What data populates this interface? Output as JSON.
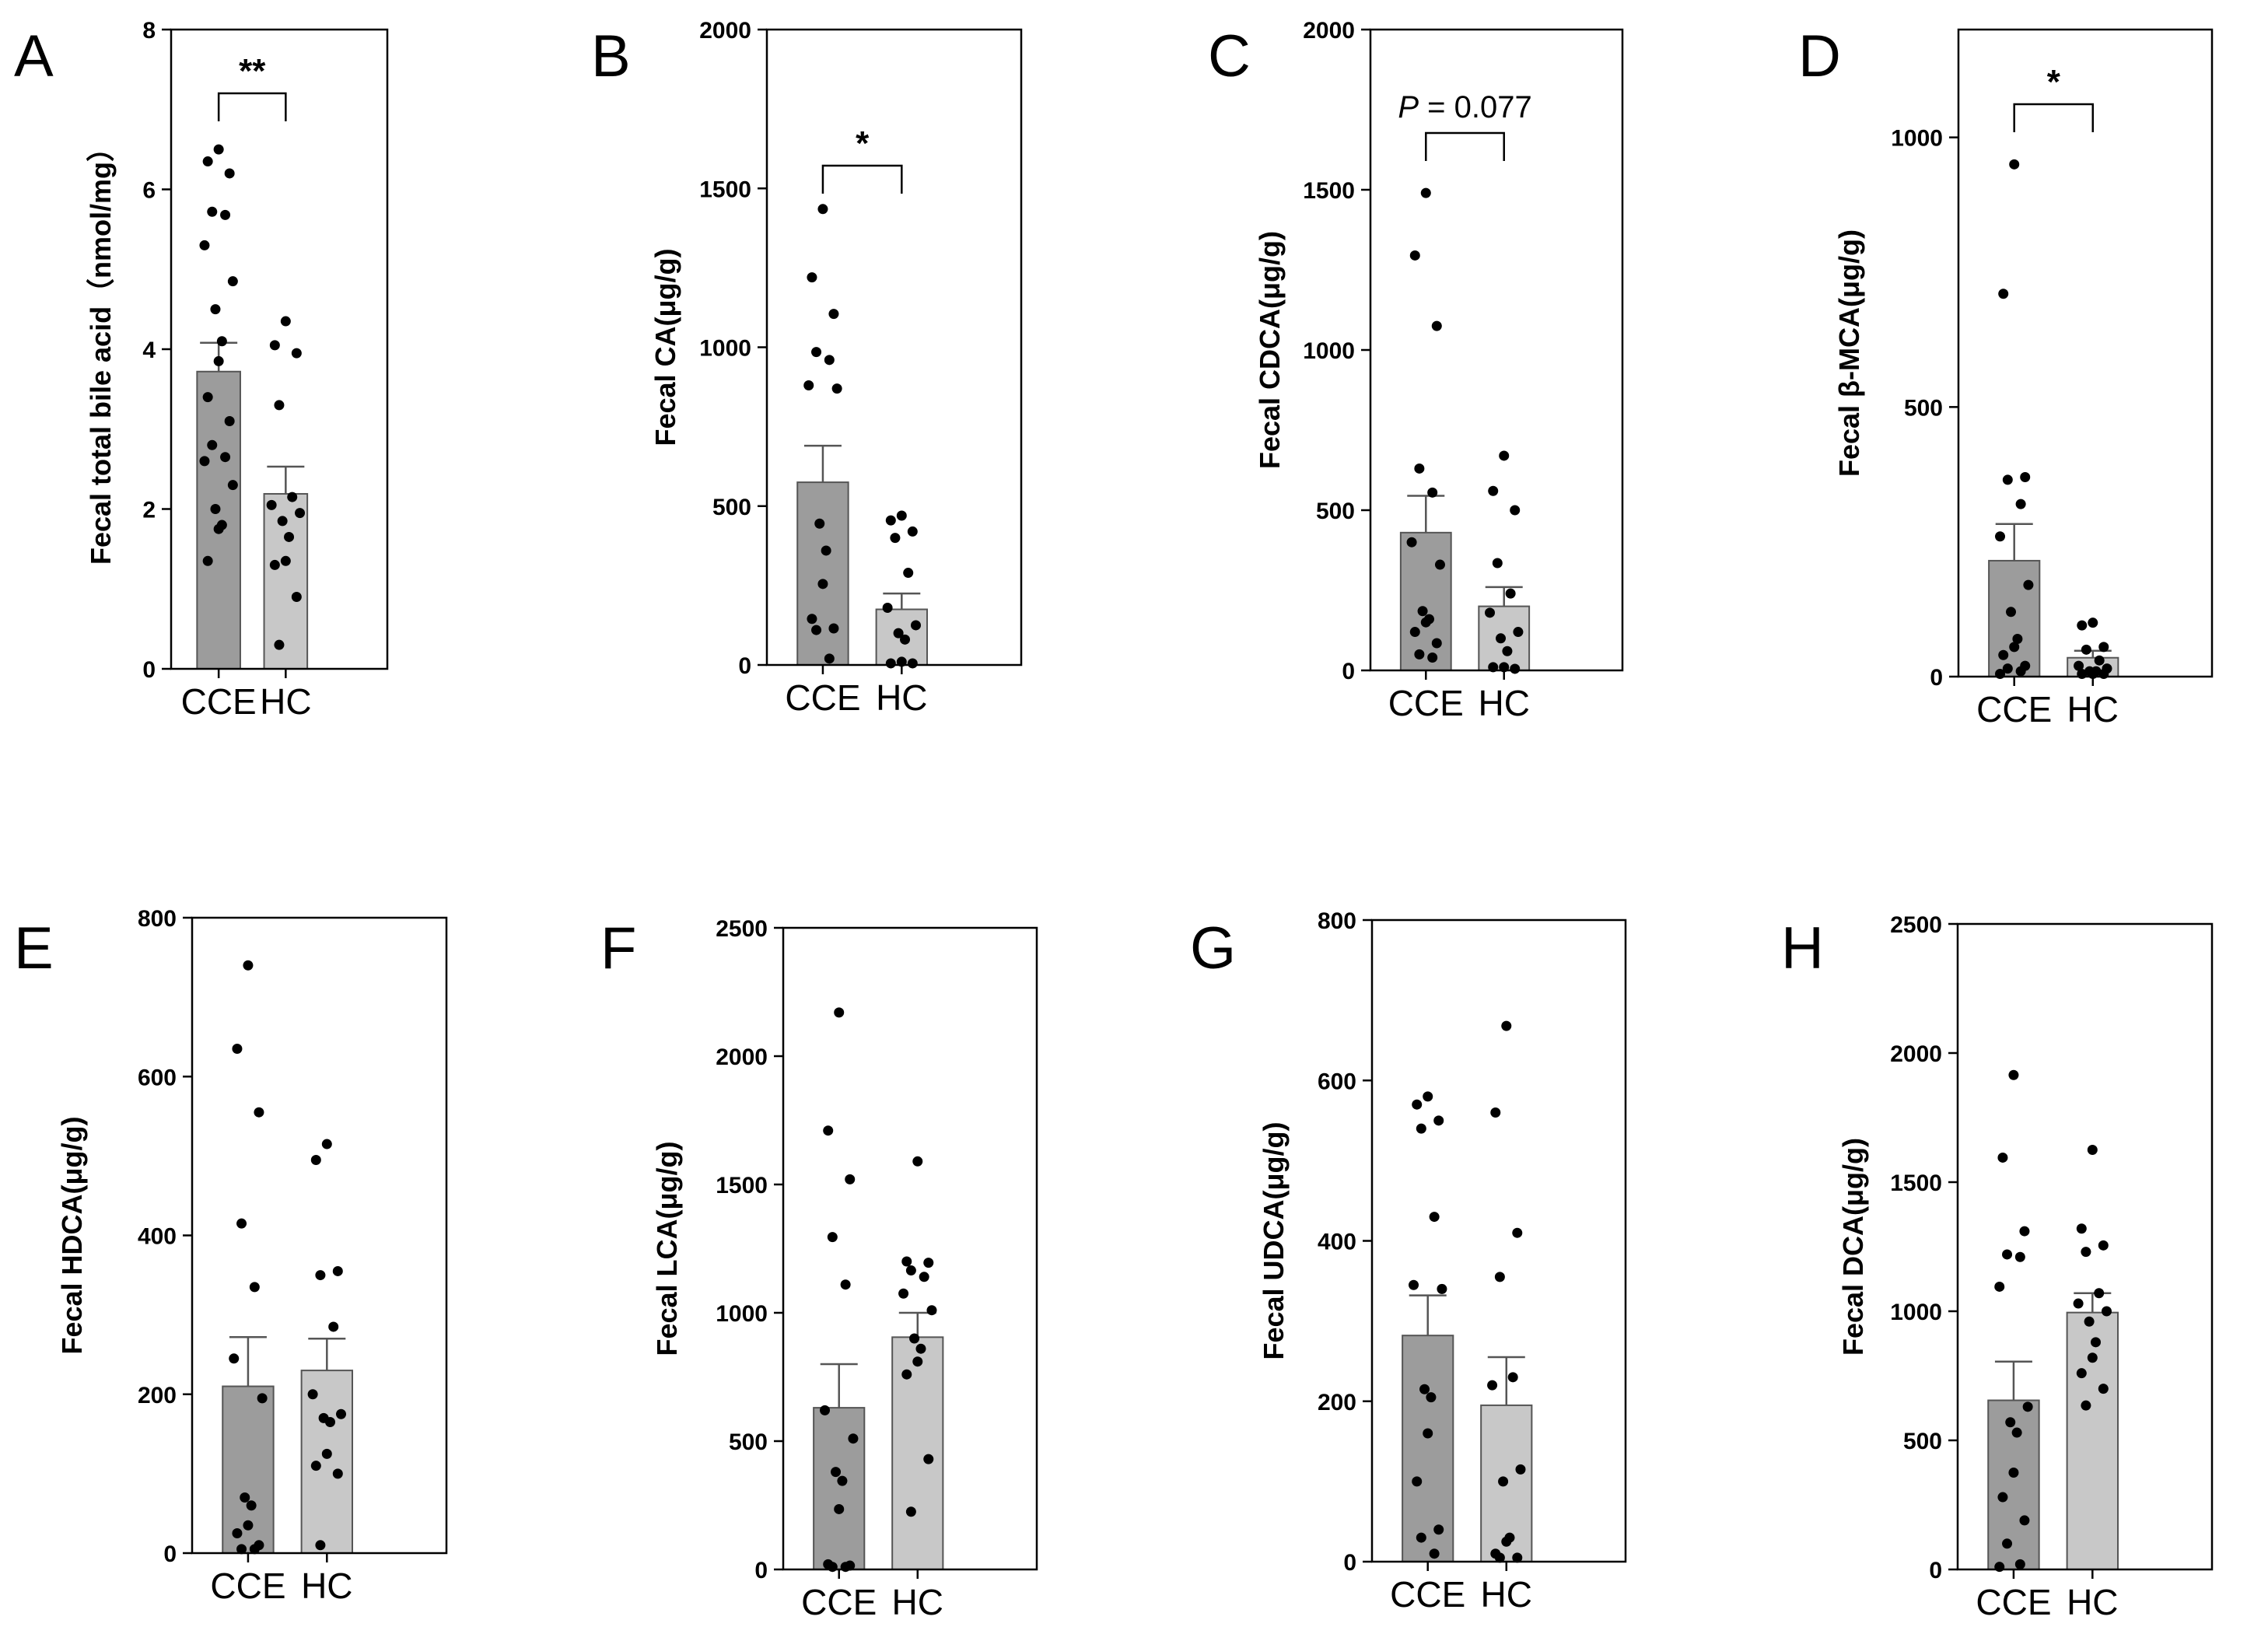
{
  "chart_data": [
    {
      "type": "bar",
      "panel": "A",
      "title": "",
      "xlabel": "",
      "ylabel": "Fecal total bile acid（nmol/mg）",
      "categories": [
        "CCE",
        "HC"
      ],
      "values": [
        3.72,
        2.19
      ],
      "sem": [
        0.36,
        0.34
      ],
      "ylim": [
        0,
        8
      ],
      "yticks": [
        0,
        2,
        4,
        6,
        8
      ],
      "points": [
        [
          6.5,
          6.35,
          6.2,
          5.72,
          5.68,
          5.3,
          4.85,
          4.5,
          4.1,
          3.85,
          3.4,
          3.1,
          2.8,
          2.65,
          2.6,
          2.3,
          2.0,
          1.8,
          1.75,
          1.35
        ],
        [
          4.35,
          4.05,
          3.95,
          3.3,
          2.15,
          2.05,
          1.95,
          1.85,
          1.65,
          1.35,
          1.3,
          0.9,
          0.3
        ]
      ],
      "significance": "**"
    },
    {
      "type": "bar",
      "panel": "B",
      "title": "",
      "xlabel": "",
      "ylabel": "Fecal CA(μg/g)",
      "categories": [
        "CCE",
        "HC"
      ],
      "values": [
        575,
        175
      ],
      "sem": [
        115,
        50
      ],
      "ylim": [
        0,
        2000
      ],
      "yticks": [
        0,
        500,
        1000,
        1500,
        2000
      ],
      "points": [
        [
          1435,
          1220,
          1105,
          985,
          960,
          880,
          870,
          445,
          360,
          255,
          145,
          115,
          110,
          20
        ],
        [
          470,
          455,
          420,
          400,
          290,
          180,
          125,
          100,
          80,
          10,
          5,
          5
        ]
      ],
      "significance": "*"
    },
    {
      "type": "bar",
      "panel": "C",
      "title": "",
      "xlabel": "",
      "ylabel": "Fecal CDCA(μg/g)",
      "categories": [
        "CCE",
        "HC"
      ],
      "values": [
        430,
        200
      ],
      "sem": [
        115,
        60
      ],
      "ylim": [
        0,
        2000
      ],
      "yticks": [
        0,
        500,
        1000,
        1500,
        2000
      ],
      "points": [
        [
          1490,
          1295,
          1075,
          630,
          555,
          400,
          330,
          185,
          160,
          150,
          120,
          85,
          50,
          40
        ],
        [
          670,
          560,
          500,
          335,
          240,
          180,
          120,
          100,
          60,
          10,
          10,
          5
        ]
      ],
      "significance": "P = 0.077"
    },
    {
      "type": "bar",
      "panel": "D",
      "title": "",
      "xlabel": "",
      "ylabel": "Fecal β-MCA(μg/g)",
      "categories": [
        "CCE",
        "HC"
      ],
      "values": [
        215,
        35
      ],
      "sem": [
        68,
        13
      ],
      "ylim": [
        0,
        1200
      ],
      "yticks": [
        0,
        500,
        1000
      ],
      "points": [
        [
          950,
          710,
          370,
          365,
          320,
          260,
          170,
          120,
          70,
          55,
          40,
          20,
          15,
          10,
          5
        ],
        [
          100,
          95,
          55,
          50,
          30,
          20,
          15,
          10,
          10,
          5,
          5,
          5
        ]
      ],
      "significance": "*"
    },
    {
      "type": "bar",
      "panel": "E",
      "title": "",
      "xlabel": "",
      "ylabel": "Fecal HDCA(μg/g)",
      "categories": [
        "CCE",
        "HC"
      ],
      "values": [
        210,
        230
      ],
      "sem": [
        62,
        40
      ],
      "ylim": [
        0,
        800
      ],
      "yticks": [
        0,
        200,
        400,
        600,
        800
      ],
      "points": [
        [
          740,
          635,
          555,
          415,
          335,
          245,
          195,
          70,
          60,
          35,
          25,
          10,
          5,
          5
        ],
        [
          515,
          495,
          355,
          350,
          285,
          200,
          175,
          170,
          165,
          125,
          110,
          100,
          10
        ]
      ],
      "significance": ""
    },
    {
      "type": "bar",
      "panel": "F",
      "title": "",
      "xlabel": "",
      "ylabel": "Fecal LCA(μg/g)",
      "categories": [
        "CCE",
        "HC"
      ],
      "values": [
        630,
        905
      ],
      "sem": [
        170,
        95
      ],
      "ylim": [
        0,
        2500
      ],
      "yticks": [
        0,
        500,
        1000,
        1500,
        2000,
        2500
      ],
      "points": [
        [
          2170,
          1710,
          1520,
          1295,
          1110,
          620,
          510,
          380,
          345,
          235,
          20,
          15,
          10,
          10
        ],
        [
          1590,
          1200,
          1195,
          1165,
          1140,
          1075,
          1010,
          900,
          860,
          810,
          760,
          430,
          225
        ]
      ],
      "significance": ""
    },
    {
      "type": "bar",
      "panel": "G",
      "title": "",
      "xlabel": "",
      "ylabel": "Fecal UDCA(μg/g)",
      "categories": [
        "CCE",
        "HC"
      ],
      "values": [
        282,
        195
      ],
      "sem": [
        50,
        60
      ],
      "ylim": [
        0,
        800
      ],
      "yticks": [
        0,
        200,
        400,
        600,
        800
      ],
      "points": [
        [
          580,
          570,
          550,
          540,
          430,
          345,
          340,
          215,
          205,
          160,
          100,
          40,
          30,
          10
        ],
        [
          668,
          560,
          410,
          355,
          230,
          220,
          115,
          100,
          30,
          25,
          10,
          5,
          5
        ]
      ],
      "significance": ""
    },
    {
      "type": "bar",
      "panel": "H",
      "title": "",
      "xlabel": "",
      "ylabel": "Fecal DCA(μg/g)",
      "categories": [
        "CCE",
        "HC"
      ],
      "values": [
        655,
        995
      ],
      "sem": [
        150,
        75
      ],
      "ylim": [
        0,
        2500
      ],
      "yticks": [
        0,
        500,
        1000,
        1500,
        2000,
        2500
      ],
      "points": [
        [
          1915,
          1595,
          1310,
          1220,
          1210,
          1095,
          630,
          570,
          530,
          375,
          280,
          190,
          100,
          20,
          10
        ],
        [
          1625,
          1320,
          1255,
          1230,
          1070,
          1030,
          1000,
          960,
          880,
          820,
          760,
          700,
          635
        ]
      ],
      "significance": ""
    }
  ],
  "colors": {
    "bar_cce": "#9c9c9c",
    "bar_hc": "#c8c8c8",
    "bar_stroke": "#555555",
    "point": "#000000",
    "axis": "#000000"
  }
}
